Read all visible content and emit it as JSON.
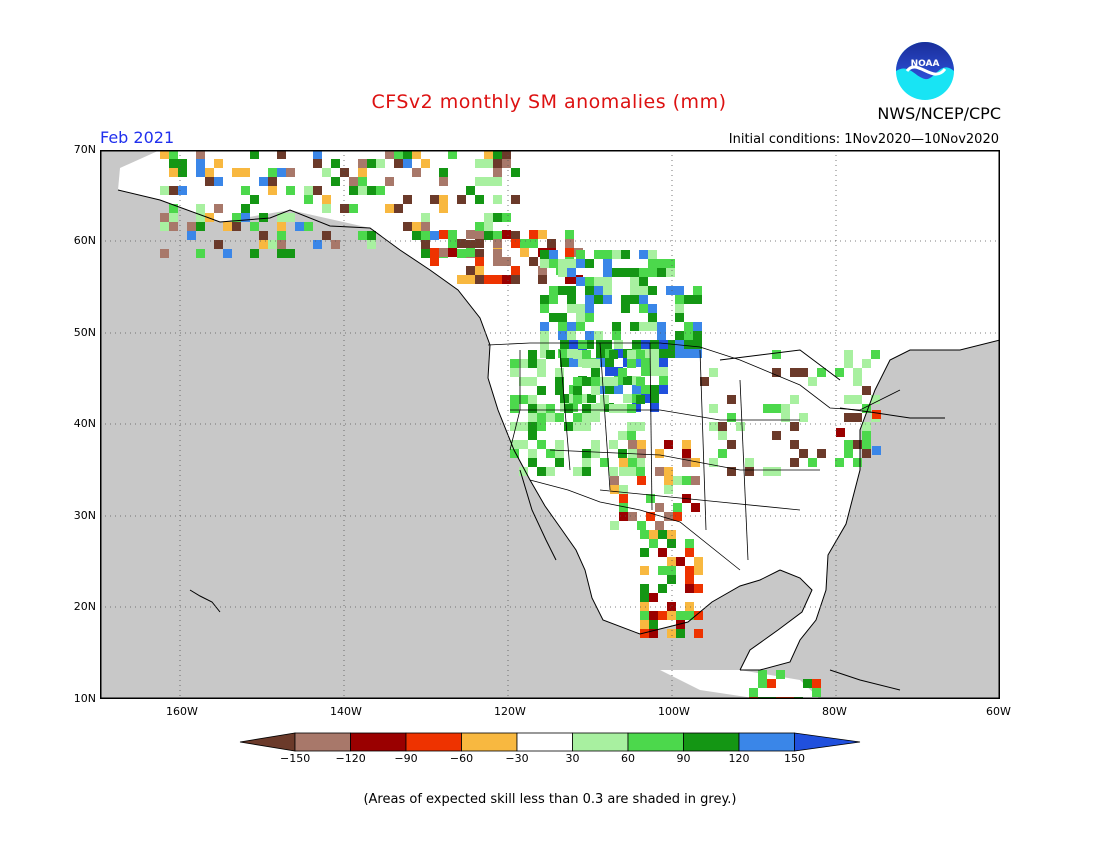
{
  "title": "CFSv2 monthly SM anomalies (mm)",
  "org": "NWS/NCEP/CPC",
  "logo_text": "NOAA",
  "period": "Feb 2021",
  "initial_conditions": "Initial conditions: 1Nov2020—10Nov2020",
  "footnote": "(Areas of expected skill less than 0.3 are shaded in grey.)",
  "map": {
    "lon_range": [
      -172,
      -60
    ],
    "lat_range": [
      10,
      70
    ],
    "lat_ticks": [
      "10N",
      "20N",
      "30N",
      "40N",
      "50N",
      "60N",
      "70N"
    ],
    "lon_ticks": [
      "160W",
      "140W",
      "120W",
      "100W",
      "80W",
      "60W"
    ],
    "grid": true,
    "mask_color": "#c8c8c8"
  },
  "colorbar": {
    "levels": [
      "−150",
      "−120",
      "−90",
      "−60",
      "−30",
      "30",
      "60",
      "90",
      "120",
      "150"
    ],
    "colors": [
      "#6b3a2a",
      "#a8786a",
      "#9a0000",
      "#ee3300",
      "#f8b840",
      "#ffffff",
      "#a8f0a0",
      "#4cd84c",
      "#149614",
      "#3a86e8",
      "#2050dd"
    ]
  }
}
